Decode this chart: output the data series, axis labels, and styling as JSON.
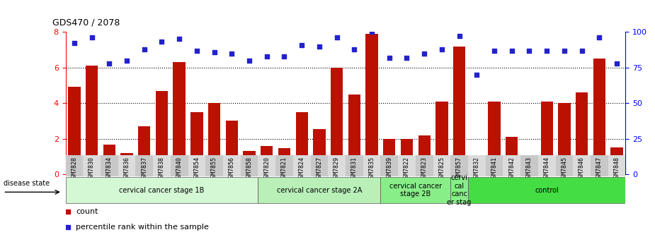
{
  "title": "GDS470 / 2078",
  "samples": [
    "GSM7828",
    "GSM7830",
    "GSM7834",
    "GSM7836",
    "GSM7837",
    "GSM7838",
    "GSM7840",
    "GSM7854",
    "GSM7855",
    "GSM7856",
    "GSM7858",
    "GSM7820",
    "GSM7821",
    "GSM7824",
    "GSM7827",
    "GSM7829",
    "GSM7831",
    "GSM7835",
    "GSM7839",
    "GSM7822",
    "GSM7823",
    "GSM7825",
    "GSM7857",
    "GSM7832",
    "GSM7841",
    "GSM7842",
    "GSM7843",
    "GSM7844",
    "GSM7845",
    "GSM7846",
    "GSM7847",
    "GSM7848"
  ],
  "counts": [
    4.9,
    6.1,
    1.65,
    1.2,
    2.7,
    4.7,
    6.3,
    3.5,
    4.0,
    3.0,
    1.3,
    1.6,
    1.45,
    3.5,
    2.55,
    6.0,
    4.5,
    7.9,
    2.0,
    2.0,
    2.2,
    4.1,
    7.2,
    0.9,
    4.1,
    2.1,
    0.5,
    4.1,
    4.0,
    4.6,
    6.5,
    1.5
  ],
  "percentiles": [
    92,
    96,
    78,
    80,
    88,
    93,
    95,
    87,
    86,
    85,
    80,
    83,
    83,
    91,
    90,
    96,
    88,
    100,
    82,
    82,
    85,
    88,
    97,
    70,
    87,
    87,
    87,
    87,
    87,
    87,
    96,
    78
  ],
  "bar_color": "#bb1100",
  "dot_color": "#2222cc",
  "groups": [
    {
      "label": "cervical cancer stage 1B",
      "start": 0,
      "end": 11,
      "color": "#d4f7d4"
    },
    {
      "label": "cervical cancer stage 2A",
      "start": 11,
      "end": 18,
      "color": "#b8f0b8"
    },
    {
      "label": "cervical cancer\nstage 2B",
      "start": 18,
      "end": 22,
      "color": "#88ee88"
    },
    {
      "label": "cervi\ncal\ncanc\ner stag",
      "start": 22,
      "end": 23,
      "color": "#88ee88"
    },
    {
      "label": "control",
      "start": 23,
      "end": 32,
      "color": "#44dd44"
    }
  ],
  "ylim_left": [
    0,
    8
  ],
  "ylim_right": [
    0,
    100
  ],
  "yticks_left": [
    0,
    2,
    4,
    6,
    8
  ],
  "yticks_right": [
    0,
    25,
    50,
    75,
    100
  ],
  "disease_state_label": "disease state"
}
